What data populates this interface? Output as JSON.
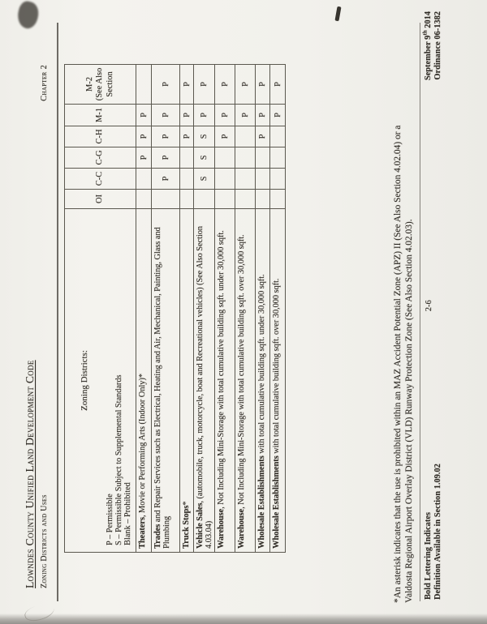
{
  "page": {
    "title": "Lowndes County Unified Land Development Code",
    "subtitle": "Zoning Districts and Uses",
    "chapter": "Chapter 2"
  },
  "table": {
    "corner_label": "Zoning Districts:",
    "legend": [
      "P – Permissible",
      "S – Permissible Subject to Supplemental Standards",
      "Blank – Prohibited"
    ],
    "districts": [
      [
        "OI"
      ],
      [
        "C-C"
      ],
      [
        "C-G"
      ],
      [
        "C-H"
      ],
      [
        "M-1"
      ],
      [
        "M-2",
        "(See Also",
        "Section"
      ]
    ],
    "rows": [
      {
        "term": "Theaters",
        "rest": ", Movie or Performing Arts (Indoor Only)*",
        "marks": [
          "",
          "",
          "P",
          "P",
          "P",
          ""
        ]
      },
      {
        "term": "Trades",
        "rest": " and Repair Services such as Electrical, Heating and Air, Mechanical, Painting, Glass and Plumbing",
        "marks": [
          "",
          "P",
          "P",
          "P",
          "P",
          "P"
        ]
      },
      {
        "term": "Truck Stops",
        "rest": "*",
        "marks": [
          "",
          "",
          "",
          "P",
          "P",
          "P"
        ]
      },
      {
        "term": "Vehicle Sales",
        "rest": ", (automobile, truck, motorcycle, boat and Recreational vehicles) (See Also Section 4.03.04)",
        "marks": [
          "",
          "S",
          "S",
          "S",
          "P",
          "P"
        ]
      },
      {
        "term": "Warehouse",
        "rest": ", Not Including Mini-Storage with total cumulative building sqft. under 30,000 sqft.",
        "marks": [
          "",
          "",
          "",
          "P",
          "P",
          "P"
        ]
      },
      {
        "term": "Warehouse",
        "rest": ", Not Including Mini-Storage with total cumulative building sqft. over 30,000 sqft.",
        "marks": [
          "",
          "",
          "",
          "",
          "P",
          "P"
        ]
      },
      {
        "term": "Wholesale Establishments",
        "rest": " with total cumulative building sqft. under 30,000 sqft.",
        "marks": [
          "",
          "",
          "",
          "P",
          "P",
          "P"
        ]
      },
      {
        "term": "Wholesale Establishments",
        "rest": " with total cumulative building sqft. over 30,000 sqft.",
        "marks": [
          "",
          "",
          "",
          "",
          "P",
          "P"
        ]
      }
    ]
  },
  "footnote": {
    "line1": "*An asterisk indicates that the use is prohibited within an MAZ Accident Potential Zone (APZ) II (See Also Section 4.02.04) or a",
    "line2": "Valdosta Regional Airport Overlay District (VLD) Runway Protection Zone (See Also Section 4.02.03)."
  },
  "footer": {
    "left_line1": "Bold Lettering Indicates",
    "left_line2": "Definition Available in Section 1.09.02",
    "page_number": "2-6",
    "date_main": "September 9",
    "date_sup": "th",
    "date_year": " 2014",
    "ordinance": "Ordinance 06-1382"
  },
  "colors": {
    "paper": "#f2f1ec",
    "ink": "#2e2a24",
    "grid_line": "#5b584f",
    "scan_edge": "#94928d"
  }
}
